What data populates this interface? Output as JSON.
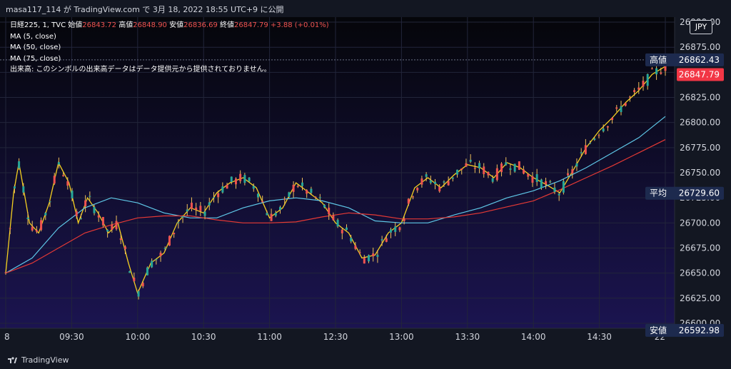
{
  "header": {
    "title": "masa117_114 が TradingView.com で 3月 18, 2022 18:55 UTC+9 に公開"
  },
  "legend": {
    "symbol": "日経225, 1, TVC",
    "open_label": "始値",
    "open": "26843.72",
    "high_label": "高値",
    "high": "26848.90",
    "low_label": "安値",
    "low": "26836.69",
    "close_label": "終値",
    "close": "26847.79",
    "change": "+3.88 (+0.01%)",
    "ma5": "MA (5, close)",
    "ma50": "MA (50, close)",
    "ma75": "MA (75, close)",
    "volume_note": "出来高: このシンボルの出来高データはデータ提供元から提供されておりません。"
  },
  "currency": "JPY",
  "footer": {
    "brand": "TradingView"
  },
  "colors": {
    "up": "#ef5350",
    "down": "#26a69a",
    "wick": "#f0c05a",
    "ma5": "#f5d020",
    "ma50": "#5fc8e8",
    "ma75": "#e53935",
    "axis_bg": "#131722",
    "label_box": "#1d2a4e",
    "last_box": "#f23645"
  },
  "chart_data": {
    "type": "candlestick",
    "symbol": "日経225",
    "interval": "1",
    "ylim": [
      26595,
      26905
    ],
    "y_ticks": [
      "26600.00",
      "26625.00",
      "26650.00",
      "26675.00",
      "26700.00",
      "26725.00",
      "26750.00",
      "26775.00",
      "26800.00",
      "26825.00",
      "26850.00",
      "26875.00",
      "26900.00"
    ],
    "x_ticks": [
      {
        "label": "8",
        "t": 0
      },
      {
        "label": "09:30",
        "t": 0.5
      },
      {
        "label": "10:00",
        "t": 1.0
      },
      {
        "label": "10:30",
        "t": 1.5
      },
      {
        "label": "11:00",
        "t": 2.0
      },
      {
        "label": "12:30",
        "t": 2.5
      },
      {
        "label": "13:00",
        "t": 3.0
      },
      {
        "label": "13:30",
        "t": 3.5
      },
      {
        "label": "14:00",
        "t": 4.0
      },
      {
        "label": "14:30",
        "t": 4.5
      },
      {
        "label": "22",
        "t": 5.0
      }
    ],
    "price_labels": [
      {
        "name": "高値",
        "value": "26862.43"
      },
      {
        "name": "平均",
        "value": "26729.60"
      },
      {
        "name": "安値",
        "value": "26592.98"
      }
    ],
    "last_price": "26847.79",
    "series": [
      {
        "name": "MA (5, close)",
        "values": [
          [
            0,
            26650
          ],
          [
            0.06,
            26730
          ],
          [
            0.1,
            26760
          ],
          [
            0.18,
            26700
          ],
          [
            0.25,
            26690
          ],
          [
            0.33,
            26720
          ],
          [
            0.4,
            26760
          ],
          [
            0.48,
            26740
          ],
          [
            0.55,
            26700
          ],
          [
            0.62,
            26725
          ],
          [
            0.7,
            26710
          ],
          [
            0.78,
            26690
          ],
          [
            0.85,
            26700
          ],
          [
            0.93,
            26660
          ],
          [
            1.0,
            26630
          ],
          [
            1.1,
            26660
          ],
          [
            1.2,
            26670
          ],
          [
            1.3,
            26700
          ],
          [
            1.4,
            26715
          ],
          [
            1.5,
            26710
          ],
          [
            1.6,
            26730
          ],
          [
            1.7,
            26740
          ],
          [
            1.8,
            26745
          ],
          [
            1.9,
            26735
          ],
          [
            2.0,
            26705
          ],
          [
            2.1,
            26715
          ],
          [
            2.2,
            26740
          ],
          [
            2.3,
            26730
          ],
          [
            2.4,
            26720
          ],
          [
            2.5,
            26700
          ],
          [
            2.6,
            26690
          ],
          [
            2.7,
            26665
          ],
          [
            2.8,
            26668
          ],
          [
            2.9,
            26690
          ],
          [
            3.0,
            26700
          ],
          [
            3.1,
            26735
          ],
          [
            3.2,
            26745
          ],
          [
            3.3,
            26735
          ],
          [
            3.4,
            26748
          ],
          [
            3.5,
            26758
          ],
          [
            3.6,
            26755
          ],
          [
            3.7,
            26745
          ],
          [
            3.8,
            26760
          ],
          [
            3.9,
            26755
          ],
          [
            4.0,
            26745
          ],
          [
            4.1,
            26738
          ],
          [
            4.2,
            26730
          ],
          [
            4.3,
            26752
          ],
          [
            4.4,
            26775
          ],
          [
            4.5,
            26792
          ],
          [
            4.6,
            26805
          ],
          [
            4.7,
            26820
          ],
          [
            4.8,
            26832
          ],
          [
            4.9,
            26848
          ],
          [
            5.0,
            26856
          ]
        ]
      },
      {
        "name": "MA (50, close)",
        "values": [
          [
            0,
            26650
          ],
          [
            0.2,
            26665
          ],
          [
            0.4,
            26695
          ],
          [
            0.6,
            26715
          ],
          [
            0.8,
            26725
          ],
          [
            1.0,
            26720
          ],
          [
            1.2,
            26710
          ],
          [
            1.4,
            26705
          ],
          [
            1.6,
            26705
          ],
          [
            1.8,
            26715
          ],
          [
            2.0,
            26722
          ],
          [
            2.2,
            26725
          ],
          [
            2.4,
            26722
          ],
          [
            2.6,
            26715
          ],
          [
            2.8,
            26702
          ],
          [
            3.0,
            26700
          ],
          [
            3.2,
            26700
          ],
          [
            3.4,
            26708
          ],
          [
            3.6,
            26715
          ],
          [
            3.8,
            26725
          ],
          [
            4.0,
            26732
          ],
          [
            4.2,
            26742
          ],
          [
            4.4,
            26755
          ],
          [
            4.6,
            26770
          ],
          [
            4.8,
            26785
          ],
          [
            5.0,
            26806
          ]
        ]
      },
      {
        "name": "MA (75, close)",
        "values": [
          [
            0,
            26650
          ],
          [
            0.2,
            26660
          ],
          [
            0.4,
            26675
          ],
          [
            0.6,
            26690
          ],
          [
            0.8,
            26698
          ],
          [
            1.0,
            26705
          ],
          [
            1.2,
            26707
          ],
          [
            1.4,
            26707
          ],
          [
            1.6,
            26703
          ],
          [
            1.8,
            26700
          ],
          [
            2.0,
            26700
          ],
          [
            2.2,
            26701
          ],
          [
            2.4,
            26706
          ],
          [
            2.6,
            26710
          ],
          [
            2.8,
            26708
          ],
          [
            3.0,
            26704
          ],
          [
            3.2,
            26704
          ],
          [
            3.4,
            26706
          ],
          [
            3.6,
            26710
          ],
          [
            3.8,
            26716
          ],
          [
            4.0,
            26722
          ],
          [
            4.2,
            26733
          ],
          [
            4.4,
            26745
          ],
          [
            4.6,
            26757
          ],
          [
            4.8,
            26770
          ],
          [
            5.0,
            26783
          ]
        ]
      }
    ]
  }
}
